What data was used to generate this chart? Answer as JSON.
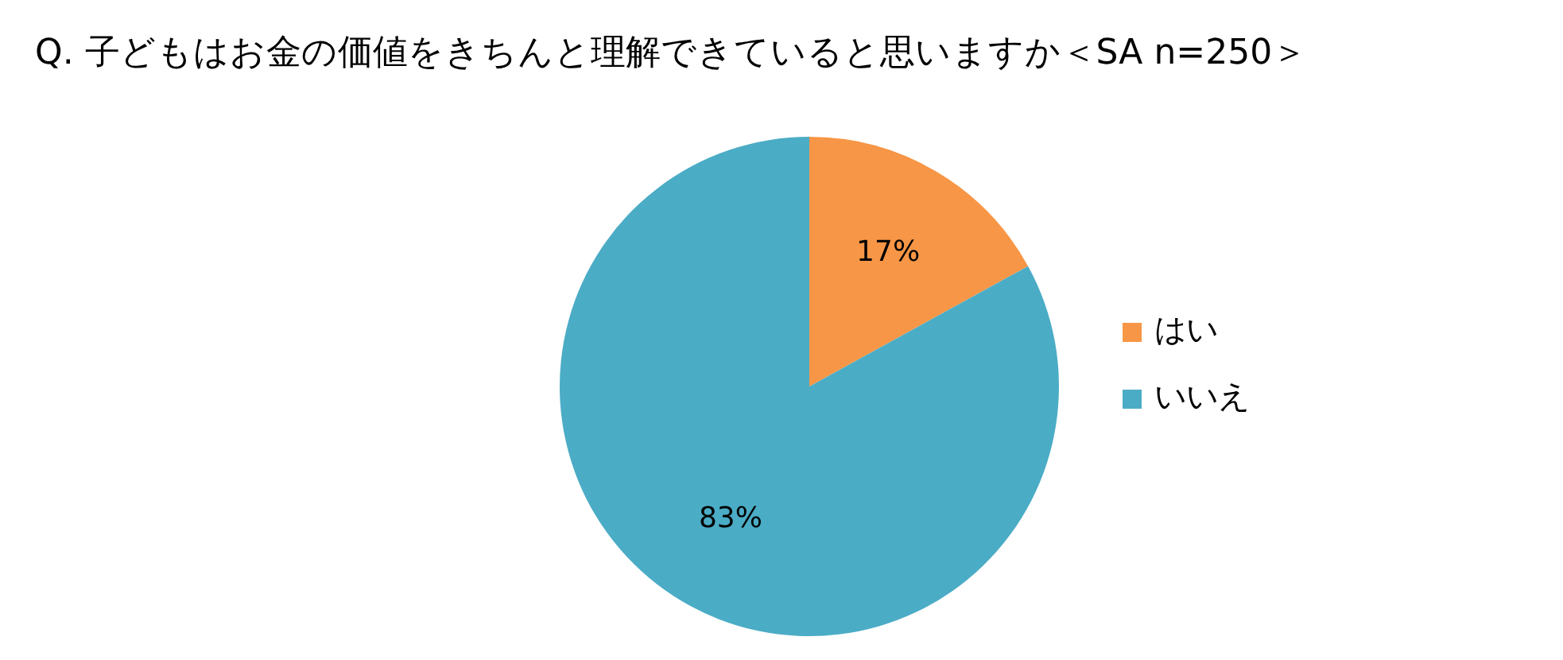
{
  "chart_data": {
    "type": "pie",
    "title": "Q. 子どもはお金の価値をきちんと理解できていると思いますか＜SA n=250＞",
    "categories": [
      "はい",
      "いいえ"
    ],
    "values": [
      17,
      83
    ],
    "colors": [
      "#f79646",
      "#4bacc6"
    ],
    "value_labels": [
      "17%",
      "83%"
    ],
    "legend": "right"
  }
}
